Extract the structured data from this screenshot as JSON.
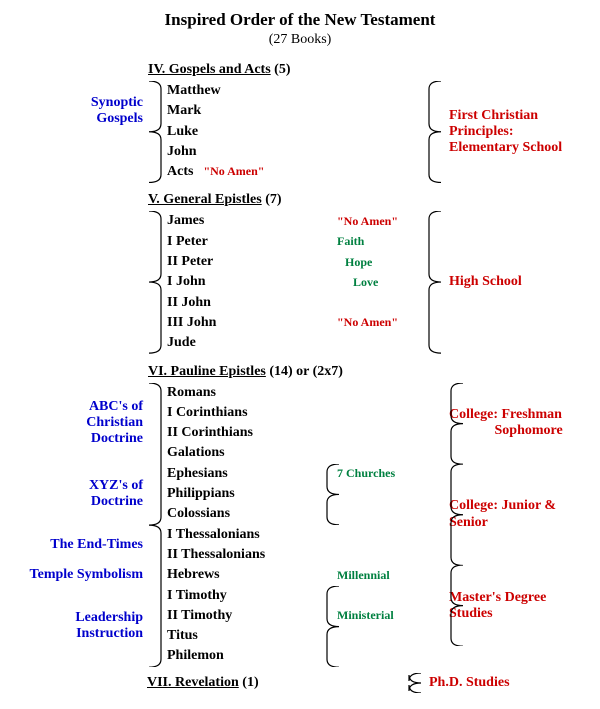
{
  "colors": {
    "left": "#0000cc",
    "right": "#cc0000",
    "green": "#008040",
    "text": "#000000",
    "bg": "#ffffff"
  },
  "fonts": {
    "family": "Times New Roman",
    "base_pt": 11,
    "title_pt": 13
  },
  "title": "Inspired Order of the New Testament",
  "subtitle": "(27 Books)",
  "sections": {
    "gospels": {
      "roman": "IV. Gospels and Acts",
      "count": "(5)",
      "left": [
        "Synoptic",
        "Gospels"
      ],
      "books": [
        "Matthew",
        "Mark",
        "Luke",
        "John",
        "Acts"
      ],
      "acts_note": "\"No Amen\"",
      "right": [
        "First Christian Principles:",
        "Elementary School"
      ],
      "left_rows": 3,
      "right_rows": 5
    },
    "general": {
      "roman": "V. General Epistles",
      "count": "(7)",
      "books": [
        "James",
        "I Peter",
        "II Peter",
        "I John",
        "II John",
        "III John",
        "Jude"
      ],
      "annots": {
        "0": {
          "text": "\"No Amen\"",
          "cls": "annot-red"
        },
        "1": {
          "text": "Faith",
          "cls": "annot-green"
        },
        "2": {
          "text": "Hope",
          "cls": "annot-green",
          "indent": 8
        },
        "3": {
          "text": "Love",
          "cls": "annot-green",
          "indent": 16
        },
        "5": {
          "text": "\"No Amen\"",
          "cls": "annot-red"
        }
      },
      "right": [
        "High School"
      ],
      "right_rows": 7
    },
    "pauline": {
      "roman": "VI. Pauline Epistles",
      "count": "(14) or (2x7)",
      "books": [
        "Romans",
        "I Corinthians",
        "II Corinthians",
        "Galations",
        "Ephesians",
        "Philippians",
        "Colossians",
        "I Thessalonians",
        "II Thessalonians",
        "Hebrews",
        "I Timothy",
        "II Timothy",
        "Titus",
        "Philemon"
      ],
      "annots": {
        "4": {
          "text": "7 Churches",
          "cls": "annot-green",
          "brace_span": 3
        },
        "9": {
          "text": "Millennial",
          "cls": "annot-green"
        },
        "11": {
          "text": "Ministerial",
          "cls": "annot-green",
          "brace_span": 4,
          "brace_offset": -1
        }
      },
      "left_labels": [
        {
          "text": [
            "ABC's of",
            "Christian",
            "Doctrine"
          ],
          "start": 0,
          "span": 4
        },
        {
          "text": [
            "XYZ's of",
            "Doctrine"
          ],
          "start": 4,
          "span": 3
        },
        {
          "text": [
            "The End-Times"
          ],
          "start": 7,
          "span": 2
        },
        {
          "text": [
            "Temple Symbolism"
          ],
          "start": 9,
          "span": 1
        },
        {
          "text": [
            "Leadership",
            "Instruction"
          ],
          "start": 10,
          "span": 4
        }
      ],
      "right_labels": [
        {
          "text": [
            "College: Freshman",
            "             Sophomore"
          ],
          "start": 0,
          "span": 4
        },
        {
          "text": [
            "College: Junior & Senior"
          ],
          "start": 4,
          "span": 5
        },
        {
          "text": [
            "Master's Degree Studies"
          ],
          "start": 9,
          "span": 4
        },
        {
          "text": [
            "Ph.D. Studies"
          ],
          "start": 13,
          "span": 1
        }
      ]
    },
    "revelation": {
      "roman": "VII. Revelation",
      "count": "(1)"
    }
  }
}
